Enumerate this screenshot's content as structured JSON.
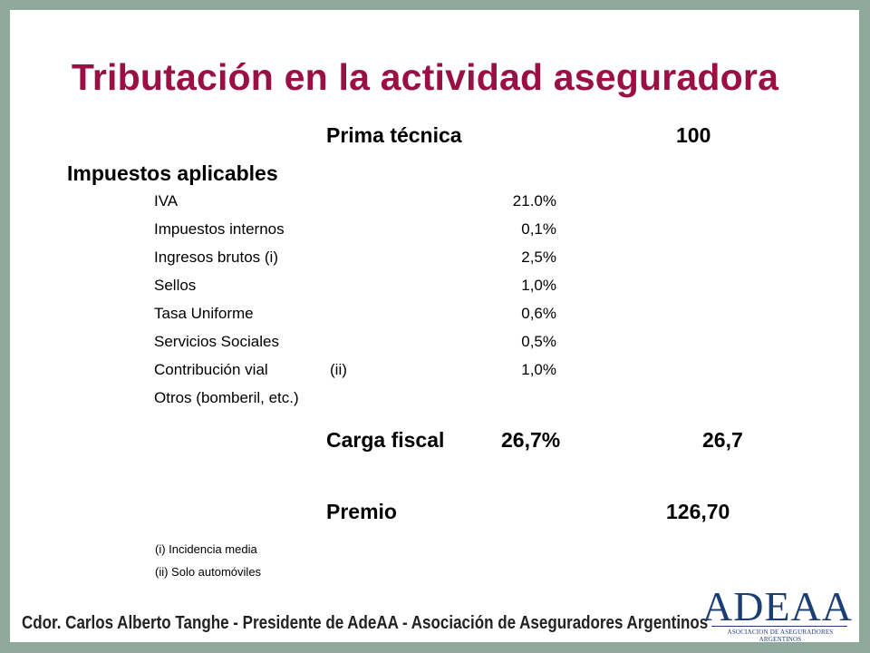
{
  "title": "Tributación en la actividad aseguradora",
  "prima": {
    "label": "Prima técnica",
    "value": "100"
  },
  "impuestos_heading": "Impuestos aplicables",
  "taxes": [
    {
      "name": "IVA",
      "note": "",
      "rate": "21.0%"
    },
    {
      "name": "Impuestos internos",
      "note": "",
      "rate": "0,1%"
    },
    {
      "name": "Ingresos brutos (i)",
      "note": "",
      "rate": "2,5%"
    },
    {
      "name": "Sellos",
      "note": "",
      "rate": "1,0%"
    },
    {
      "name": "Tasa Uniforme",
      "note": "",
      "rate": "0,6%"
    },
    {
      "name": "Servicios Sociales",
      "note": "",
      "rate": "0,5%"
    },
    {
      "name": "Contribución vial",
      "note": "(ii)",
      "rate": "1,0%"
    },
    {
      "name": "Otros (bomberil, etc.)",
      "note": "",
      "rate": ""
    }
  ],
  "carga": {
    "label": "Carga fiscal",
    "pct": "26,7%",
    "value": "26,7"
  },
  "premio": {
    "label": "Premio",
    "value": "126,70"
  },
  "notes": [
    "(i) Incidencia media",
    "(ii) Solo automóviles"
  ],
  "footer": "Cdor. Carlos Alberto Tanghe - Presidente  de AdeAA - Asociación de Aseguradores Argentinos",
  "logo": {
    "word": "ADEAA",
    "sub": "ASOCIACION DE ASEGURADORES ARGENTINOS"
  },
  "colors": {
    "title": "#9b1044",
    "border": "#8fa89c",
    "logo": "#1c3f73"
  }
}
